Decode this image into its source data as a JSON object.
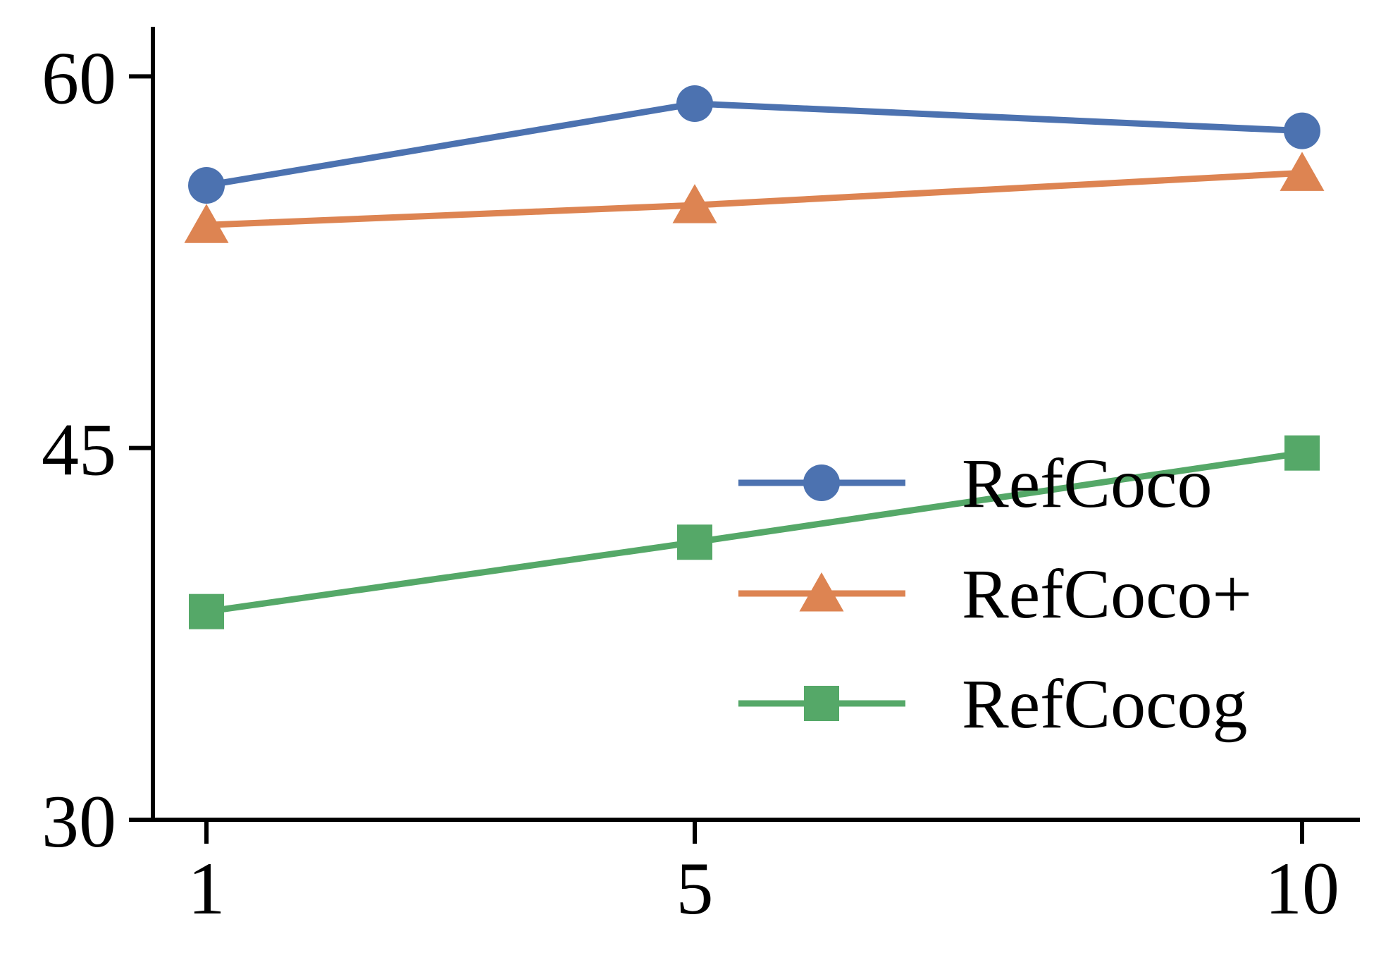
{
  "chart_data": {
    "type": "line",
    "title": "",
    "xlabel": "",
    "ylabel": "",
    "x": [
      1,
      5,
      10
    ],
    "xticks": [
      "1",
      "5",
      "10"
    ],
    "yticks": [
      30,
      45,
      60
    ],
    "ylim": [
      30,
      62
    ],
    "grid": false,
    "legend": "lower-right",
    "series": [
      {
        "name": "RefCoco",
        "values": [
          55.6,
          58.9,
          57.8
        ],
        "color": "#4C72B0",
        "marker": "circle"
      },
      {
        "name": "RefCoco+",
        "values": [
          54.0,
          54.8,
          56.1
        ],
        "color": "#DD8452",
        "marker": "triangle"
      },
      {
        "name": "RefCocog",
        "values": [
          38.4,
          41.2,
          44.8
        ],
        "color": "#55A868",
        "marker": "square"
      }
    ]
  }
}
